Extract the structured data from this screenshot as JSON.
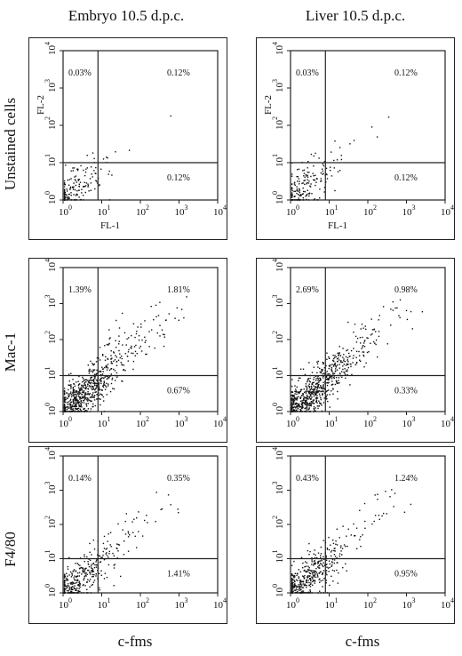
{
  "columns": [
    "Embryo 10.5 d.p.c.",
    "Liver 10.5 d.p.c."
  ],
  "rows": [
    "Unstained cells",
    "Mac-1",
    "F4/80"
  ],
  "x_footer": "c-fms",
  "chart_data": [
    {
      "type": "scatter",
      "row": "Unstained cells",
      "column": "Embryo 10.5 d.p.c.",
      "xlabel": "FL-1",
      "ylabel": "FL-2",
      "xscale": "log",
      "yscale": "log",
      "xlim": [
        1,
        10000
      ],
      "ylim": [
        1,
        10000
      ],
      "quadrants": {
        "upper_left": "0.03%",
        "upper_right": "0.12%",
        "lower_right": "0.12%"
      },
      "gate": [
        8,
        10
      ]
    },
    {
      "type": "scatter",
      "row": "Unstained cells",
      "column": "Liver 10.5 d.p.c.",
      "xlabel": "FL-1",
      "ylabel": "FL-2",
      "xscale": "log",
      "yscale": "log",
      "xlim": [
        1,
        10000
      ],
      "ylim": [
        1,
        10000
      ],
      "quadrants": {
        "upper_left": "0.03%",
        "upper_right": "0.12%",
        "lower_right": "0.12%"
      },
      "gate": [
        8,
        10
      ]
    },
    {
      "type": "scatter",
      "row": "Mac-1",
      "column": "Embryo 10.5 d.p.c.",
      "xlabel": "",
      "ylabel": "",
      "xscale": "log",
      "yscale": "log",
      "xlim": [
        1,
        10000
      ],
      "ylim": [
        1,
        10000
      ],
      "quadrants": {
        "upper_left": "1.39%",
        "upper_right": "1.81%",
        "lower_right": "0.67%"
      },
      "gate": [
        8,
        10
      ]
    },
    {
      "type": "scatter",
      "row": "Mac-1",
      "column": "Liver 10.5 d.p.c.",
      "xlabel": "",
      "ylabel": "",
      "xscale": "log",
      "yscale": "log",
      "xlim": [
        1,
        10000
      ],
      "ylim": [
        1,
        10000
      ],
      "quadrants": {
        "upper_left": "2.69%",
        "upper_right": "0.98%",
        "lower_right": "0.33%"
      },
      "gate": [
        8,
        10
      ]
    },
    {
      "type": "scatter",
      "row": "F4/80",
      "column": "Embryo 10.5 d.p.c.",
      "xlabel": "",
      "ylabel": "",
      "xscale": "log",
      "yscale": "log",
      "xlim": [
        1,
        10000
      ],
      "ylim": [
        1,
        10000
      ],
      "quadrants": {
        "upper_left": "0.14%",
        "upper_right": "0.35%",
        "lower_right": "1.41%"
      },
      "gate": [
        8,
        10
      ]
    },
    {
      "type": "scatter",
      "row": "F4/80",
      "column": "Liver 10.5 d.p.c.",
      "xlabel": "",
      "ylabel": "",
      "xscale": "log",
      "yscale": "log",
      "xlim": [
        1,
        10000
      ],
      "ylim": [
        1,
        10000
      ],
      "quadrants": {
        "upper_left": "0.43%",
        "upper_right": "1.24%",
        "lower_right": "0.95%"
      },
      "gate": [
        8,
        10
      ]
    }
  ]
}
